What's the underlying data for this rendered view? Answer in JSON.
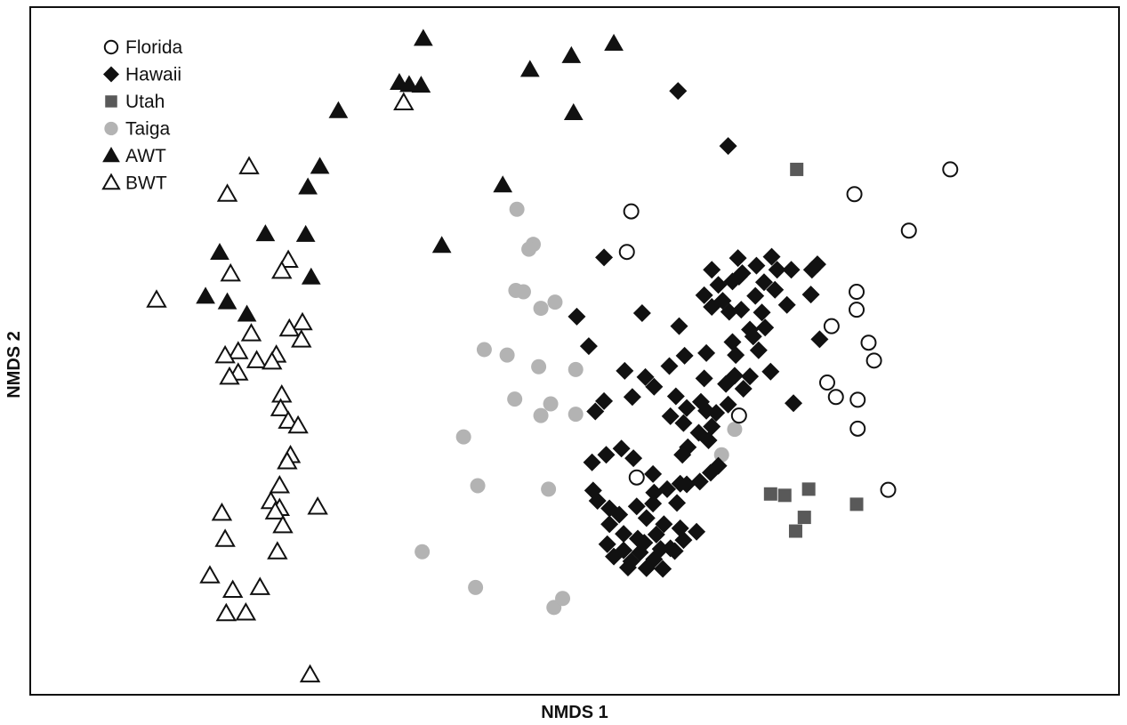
{
  "chart_data": {
    "type": "scatter",
    "xlabel": "NMDS 1",
    "ylabel": "NMDS 2",
    "xlim": [
      0,
      100
    ],
    "ylim": [
      0,
      100
    ],
    "grid": false,
    "legend_position": "top-left",
    "series": [
      {
        "name": "Florida",
        "marker": "circle-open",
        "color": "#111111",
        "points": [
          [
            55.2,
            70.3
          ],
          [
            54.8,
            64.4
          ],
          [
            75.7,
            72.8
          ],
          [
            80.7,
            67.5
          ],
          [
            84.5,
            76.4
          ],
          [
            75.9,
            58.6
          ],
          [
            75.9,
            56.0
          ],
          [
            73.6,
            53.6
          ],
          [
            77.0,
            51.2
          ],
          [
            77.5,
            48.6
          ],
          [
            73.2,
            45.4
          ],
          [
            74.0,
            43.3
          ],
          [
            76.0,
            42.9
          ],
          [
            76.0,
            38.7
          ],
          [
            65.1,
            40.6
          ],
          [
            55.7,
            31.6
          ],
          [
            78.8,
            29.8
          ]
        ]
      },
      {
        "name": "Hawaii",
        "marker": "diamond-filled",
        "color": "#111111",
        "points": [
          [
            59.5,
            87.8
          ],
          [
            64.1,
            79.8
          ],
          [
            52.7,
            63.6
          ],
          [
            50.2,
            55.0
          ],
          [
            51.3,
            50.7
          ],
          [
            56.2,
            55.5
          ],
          [
            59.6,
            53.6
          ],
          [
            62.6,
            61.8
          ],
          [
            65.0,
            63.5
          ],
          [
            71.8,
            61.8
          ],
          [
            72.3,
            62.6
          ],
          [
            71.7,
            58.2
          ],
          [
            72.5,
            51.7
          ],
          [
            70.1,
            42.4
          ],
          [
            54.6,
            47.1
          ],
          [
            52.7,
            42.7
          ],
          [
            51.9,
            41.2
          ],
          [
            56.5,
            46.2
          ],
          [
            58.7,
            47.8
          ],
          [
            60.1,
            49.3
          ],
          [
            62.1,
            49.7
          ],
          [
            61.9,
            46.0
          ],
          [
            63.9,
            45.2
          ],
          [
            64.7,
            46.4
          ],
          [
            65.5,
            44.5
          ],
          [
            64.1,
            42.2
          ],
          [
            55.3,
            43.3
          ],
          [
            57.3,
            44.8
          ],
          [
            59.3,
            43.4
          ],
          [
            58.8,
            40.5
          ],
          [
            60.0,
            39.5
          ],
          [
            61.4,
            38.1
          ],
          [
            62.3,
            37.0
          ],
          [
            60.4,
            36.0
          ],
          [
            59.9,
            34.9
          ],
          [
            62.5,
            32.3
          ],
          [
            63.2,
            33.3
          ],
          [
            61.5,
            31.0
          ],
          [
            59.7,
            30.7
          ],
          [
            58.5,
            29.9
          ],
          [
            57.2,
            32.1
          ],
          [
            55.4,
            34.4
          ],
          [
            54.3,
            35.8
          ],
          [
            52.9,
            34.9
          ],
          [
            51.6,
            33.8
          ],
          [
            51.7,
            29.7
          ],
          [
            52.1,
            28.2
          ],
          [
            53.2,
            27.1
          ],
          [
            54.1,
            26.2
          ],
          [
            55.7,
            27.4
          ],
          [
            56.6,
            25.7
          ],
          [
            53.2,
            24.8
          ],
          [
            54.5,
            23.4
          ],
          [
            55.8,
            22.7
          ],
          [
            53.0,
            21.9
          ],
          [
            54.5,
            21.0
          ],
          [
            56.0,
            20.7
          ],
          [
            53.6,
            20.1
          ],
          [
            55.2,
            19.4
          ],
          [
            57.3,
            19.7
          ],
          [
            58.8,
            21.3
          ],
          [
            60.0,
            22.5
          ],
          [
            61.2,
            23.7
          ],
          [
            59.7,
            24.2
          ],
          [
            58.2,
            24.8
          ],
          [
            57.5,
            23.3
          ],
          [
            56.4,
            22.1
          ],
          [
            54.9,
            18.5
          ],
          [
            56.6,
            18.4
          ],
          [
            58.1,
            18.3
          ],
          [
            59.2,
            20.9
          ],
          [
            57.9,
            21.2
          ],
          [
            57.3,
            29.4
          ],
          [
            57.2,
            27.8
          ],
          [
            59.4,
            27.9
          ],
          [
            60.3,
            30.6
          ],
          [
            62.6,
            39.0
          ],
          [
            63.0,
            41.0
          ],
          [
            64.5,
            51.3
          ],
          [
            66.1,
            53.1
          ],
          [
            67.2,
            55.6
          ],
          [
            68.4,
            58.9
          ],
          [
            69.9,
            61.8
          ],
          [
            69.5,
            56.7
          ],
          [
            67.5,
            53.4
          ],
          [
            66.4,
            52.1
          ],
          [
            64.2,
            55.7
          ],
          [
            63.6,
            57.3
          ],
          [
            62.6,
            56.4
          ],
          [
            61.9,
            58.1
          ],
          [
            63.2,
            59.6
          ],
          [
            64.5,
            60.1
          ],
          [
            65.4,
            61.3
          ],
          [
            66.7,
            62.4
          ],
          [
            68.1,
            63.7
          ],
          [
            68.6,
            61.8
          ],
          [
            67.4,
            60.0
          ],
          [
            66.6,
            58.0
          ],
          [
            65.3,
            56.0
          ],
          [
            64.8,
            49.4
          ],
          [
            66.9,
            50.1
          ],
          [
            68.0,
            47.0
          ],
          [
            66.1,
            46.3
          ],
          [
            65.1,
            60.8
          ],
          [
            62.1,
            41.3
          ],
          [
            61.6,
            42.6
          ],
          [
            60.3,
            41.7
          ]
        ]
      },
      {
        "name": "Utah",
        "marker": "square-filled",
        "color": "#595959",
        "points": [
          [
            70.4,
            76.4
          ],
          [
            68.0,
            29.2
          ],
          [
            69.3,
            29.0
          ],
          [
            71.5,
            29.9
          ],
          [
            71.1,
            25.8
          ],
          [
            70.3,
            23.8
          ],
          [
            75.9,
            27.7
          ]
        ]
      },
      {
        "name": "Taiga",
        "marker": "circle-filled",
        "color": "#b3b3b3",
        "points": [
          [
            44.7,
            70.6
          ],
          [
            46.2,
            65.5
          ],
          [
            45.8,
            64.8
          ],
          [
            44.6,
            58.8
          ],
          [
            45.3,
            58.6
          ],
          [
            46.9,
            56.2
          ],
          [
            48.2,
            57.1
          ],
          [
            41.7,
            50.2
          ],
          [
            43.8,
            49.4
          ],
          [
            46.7,
            47.7
          ],
          [
            50.1,
            47.3
          ],
          [
            44.5,
            43.0
          ],
          [
            47.8,
            42.3
          ],
          [
            46.9,
            40.6
          ],
          [
            50.1,
            40.8
          ],
          [
            39.8,
            37.5
          ],
          [
            41.1,
            30.4
          ],
          [
            47.6,
            29.9
          ],
          [
            36.0,
            20.8
          ],
          [
            40.9,
            15.6
          ],
          [
            48.1,
            12.7
          ],
          [
            48.9,
            14.0
          ],
          [
            64.7,
            38.6
          ],
          [
            63.5,
            34.9
          ]
        ]
      },
      {
        "name": "AWT",
        "marker": "triangle-filled",
        "color": "#111111",
        "points": [
          [
            36.1,
            95.4
          ],
          [
            53.6,
            94.7
          ],
          [
            49.7,
            92.9
          ],
          [
            45.9,
            90.9
          ],
          [
            33.9,
            89.0
          ],
          [
            34.8,
            88.7
          ],
          [
            35.9,
            88.6
          ],
          [
            28.3,
            84.9
          ],
          [
            49.9,
            84.6
          ],
          [
            26.6,
            76.8
          ],
          [
            43.4,
            74.1
          ],
          [
            25.5,
            73.8
          ],
          [
            21.6,
            67.0
          ],
          [
            25.3,
            66.9
          ],
          [
            37.8,
            65.3
          ],
          [
            17.4,
            64.3
          ],
          [
            25.8,
            60.7
          ],
          [
            16.1,
            57.9
          ],
          [
            18.1,
            57.1
          ],
          [
            19.9,
            55.3
          ]
        ]
      },
      {
        "name": "BWT",
        "marker": "triangle-open",
        "color": "#111111",
        "points": [
          [
            34.3,
            86.1
          ],
          [
            20.1,
            76.8
          ],
          [
            18.1,
            72.8
          ],
          [
            23.7,
            63.2
          ],
          [
            23.1,
            61.6
          ],
          [
            18.4,
            61.2
          ],
          [
            11.6,
            57.4
          ],
          [
            25.0,
            54.1
          ],
          [
            23.8,
            53.2
          ],
          [
            20.3,
            52.5
          ],
          [
            24.9,
            51.6
          ],
          [
            19.1,
            49.9
          ],
          [
            22.6,
            49.4
          ],
          [
            17.9,
            49.3
          ],
          [
            20.8,
            48.6
          ],
          [
            22.2,
            48.4
          ],
          [
            19.1,
            46.8
          ],
          [
            18.3,
            46.2
          ],
          [
            23.1,
            43.6
          ],
          [
            23.0,
            41.6
          ],
          [
            23.7,
            39.8
          ],
          [
            24.6,
            39.1
          ],
          [
            23.9,
            34.8
          ],
          [
            23.6,
            33.9
          ],
          [
            22.9,
            30.4
          ],
          [
            22.1,
            28.1
          ],
          [
            22.9,
            27.1
          ],
          [
            17.6,
            26.4
          ],
          [
            26.4,
            27.3
          ],
          [
            22.5,
            26.6
          ],
          [
            23.2,
            24.6
          ],
          [
            17.9,
            22.6
          ],
          [
            22.7,
            20.8
          ],
          [
            16.5,
            17.3
          ],
          [
            21.1,
            15.6
          ],
          [
            18.6,
            15.2
          ],
          [
            18.0,
            11.8
          ],
          [
            19.8,
            11.9
          ],
          [
            25.7,
            2.9
          ]
        ]
      }
    ]
  }
}
